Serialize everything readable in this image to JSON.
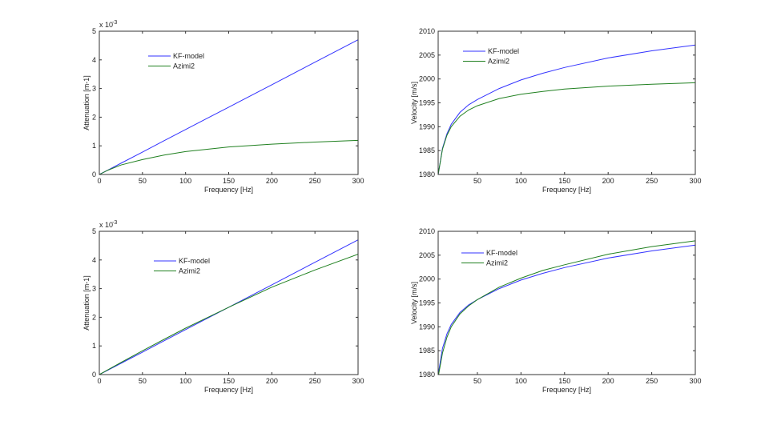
{
  "chart_data": [
    {
      "type": "line",
      "xlabel": "Frequency [Hz]",
      "ylabel": "Attenuation [m-1]",
      "y_multiplier_label": "x 10",
      "y_multiplier_exponent": "-3",
      "xlim": [
        0,
        300
      ],
      "ylim": [
        0,
        5
      ],
      "xticks": [
        0,
        50,
        100,
        150,
        200,
        250,
        300
      ],
      "yticks": [
        0,
        1,
        2,
        3,
        4,
        5
      ],
      "grid": false,
      "legend_placement": "top-left",
      "x": [
        0,
        10,
        25,
        50,
        75,
        100,
        150,
        200,
        250,
        300
      ],
      "series": [
        {
          "name": "KF-model",
          "color": "#3333ff",
          "values": [
            0,
            0.157,
            0.39,
            0.78,
            1.18,
            1.57,
            2.35,
            3.13,
            3.92,
            4.7
          ]
        },
        {
          "name": "Azimi2",
          "color": "#208020",
          "values": [
            0,
            0.15,
            0.33,
            0.52,
            0.68,
            0.8,
            0.96,
            1.06,
            1.13,
            1.19
          ]
        }
      ]
    },
    {
      "type": "line",
      "xlabel": "Frequency [Hz]",
      "ylabel": "Velocity [m/s]",
      "xlim": [
        5,
        300
      ],
      "ylim": [
        1980,
        2010
      ],
      "xticks": [
        50,
        100,
        150,
        200,
        250,
        300
      ],
      "yticks": [
        1980,
        1985,
        1990,
        1995,
        2000,
        2005,
        2010
      ],
      "grid": false,
      "legend_placement": "top-left",
      "x": [
        5,
        10,
        15,
        20,
        30,
        40,
        50,
        75,
        100,
        125,
        150,
        200,
        250,
        300
      ],
      "series": [
        {
          "name": "KF-model",
          "color": "#3333ff",
          "values": [
            1980,
            1985.5,
            1988.5,
            1990.5,
            1993,
            1994.6,
            1995.7,
            1998,
            1999.8,
            2001.2,
            2002.4,
            2004.4,
            2005.9,
            2007.1
          ]
        },
        {
          "name": "Azimi2",
          "color": "#208020",
          "values": [
            1980,
            1985.3,
            1988.2,
            1990,
            1992.2,
            1993.5,
            1994.4,
            1995.9,
            1996.8,
            1997.4,
            1997.9,
            1998.5,
            1998.9,
            1999.2
          ]
        }
      ]
    },
    {
      "type": "line",
      "xlabel": "Frequency [Hz]",
      "ylabel": "Attenuation [m-1]",
      "y_multiplier_label": "x 10",
      "y_multiplier_exponent": "-3",
      "xlim": [
        0,
        300
      ],
      "ylim": [
        0,
        5
      ],
      "xticks": [
        0,
        50,
        100,
        150,
        200,
        250,
        300
      ],
      "yticks": [
        0,
        1,
        2,
        3,
        4,
        5
      ],
      "grid": false,
      "legend_placement": "top-left",
      "x": [
        0,
        10,
        25,
        50,
        75,
        100,
        150,
        200,
        250,
        300
      ],
      "series": [
        {
          "name": "KF-model",
          "color": "#3333ff",
          "values": [
            0,
            0.157,
            0.39,
            0.78,
            1.18,
            1.57,
            2.35,
            3.13,
            3.92,
            4.7
          ]
        },
        {
          "name": "Azimi2",
          "color": "#208020",
          "values": [
            0,
            0.17,
            0.42,
            0.83,
            1.23,
            1.62,
            2.35,
            3.05,
            3.65,
            4.2
          ]
        }
      ]
    },
    {
      "type": "line",
      "xlabel": "Frequency [Hz]",
      "ylabel": "Velocity [m/s]",
      "xlim": [
        5,
        300
      ],
      "ylim": [
        1980,
        2010
      ],
      "xticks": [
        50,
        100,
        150,
        200,
        250,
        300
      ],
      "yticks": [
        1980,
        1985,
        1990,
        1995,
        2000,
        2005,
        2010
      ],
      "grid": false,
      "legend_placement": "top-left",
      "x": [
        5,
        10,
        15,
        20,
        30,
        40,
        50,
        75,
        100,
        125,
        150,
        200,
        250,
        300
      ],
      "series": [
        {
          "name": "KF-model",
          "color": "#3333ff",
          "values": [
            1980,
            1985.5,
            1988.5,
            1990.5,
            1993,
            1994.6,
            1995.7,
            1998,
            1999.8,
            2001.2,
            2002.4,
            2004.4,
            2005.9,
            2007.1
          ]
        },
        {
          "name": "Azimi2",
          "color": "#208020",
          "values": [
            1979.5,
            1984.5,
            1987.8,
            1990,
            1992.7,
            1994.4,
            1995.7,
            1998.3,
            2000.2,
            2001.8,
            2003,
            2005.2,
            2006.8,
            2008
          ]
        }
      ]
    }
  ]
}
